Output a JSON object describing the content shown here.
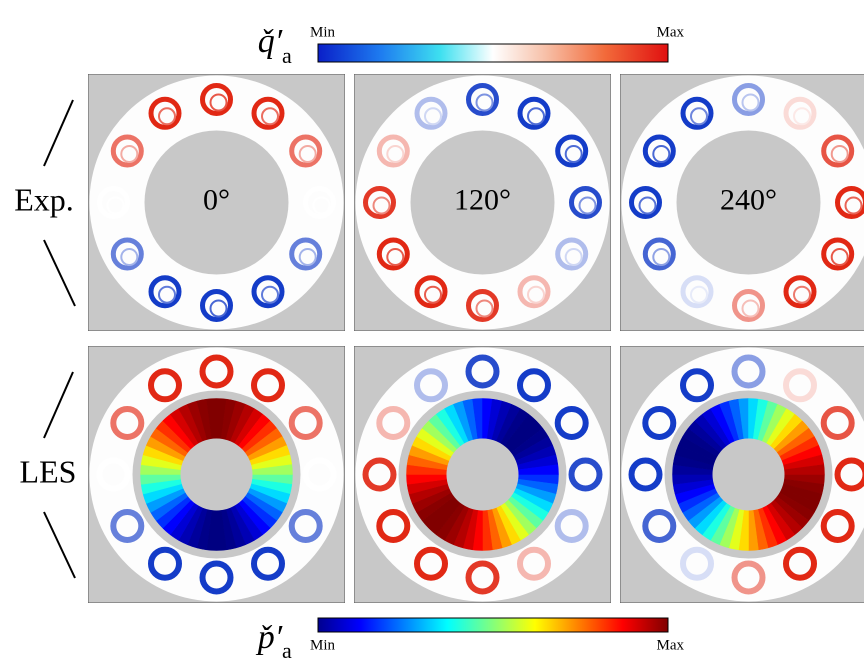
{
  "colorbar_top": {
    "symbol": "q̌′",
    "subscript": "a",
    "min_label": "Min",
    "max_label": "Max"
  },
  "colorbar_bottom": {
    "symbol": "p̌′",
    "subscript": "a",
    "min_label": "Min",
    "max_label": "Max"
  },
  "rows": [
    "Exp.",
    "LES"
  ],
  "columns": [
    "0°",
    "120°",
    "240°"
  ]
}
